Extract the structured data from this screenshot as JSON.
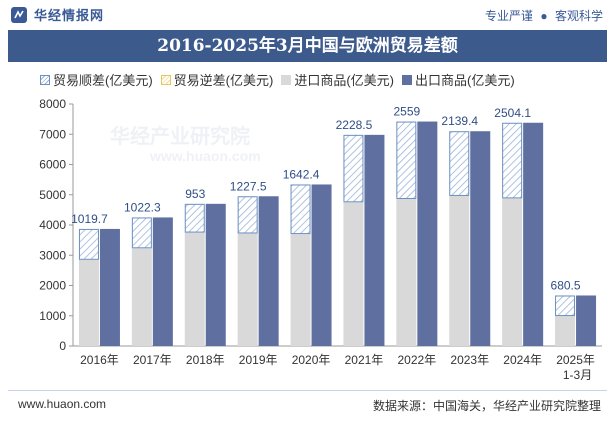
{
  "header": {
    "brand": "华经情报网",
    "tagline_left": "专业严谨",
    "tagline_sep": "●",
    "tagline_right": "客观科学"
  },
  "colors": {
    "title_bg": "#3c5a8c",
    "import": "#d9d9d9",
    "export": "#5f6f9f",
    "surplus_hatch": "#9ab4d8",
    "surplus_border": "#6a8fc0",
    "deficit_hatch": "#f0dc90"
  },
  "footer": {
    "url": "www.huaon.com",
    "source": "数据来源：中国海关，华经产业研究院整理"
  },
  "watermark": {
    "text": "华经产业研究院",
    "url": "www.huaon.com"
  },
  "chart_data": {
    "type": "bar",
    "title": "2016-2025年3月中国与欧洲贸易差额",
    "legend_position": "top",
    "legend": {
      "surplus": "贸易顺差(亿美元)",
      "deficit": "贸易逆差(亿美元)",
      "import": "进口商品(亿美元)",
      "export": "出口商品(亿美元)"
    },
    "categories": [
      "2016年",
      "2017年",
      "2018年",
      "2019年",
      "2020年",
      "2021年",
      "2022年",
      "2023年",
      "2024年",
      "2025年1-3月"
    ],
    "series": [
      {
        "name": "进口商品(亿美元)",
        "values": [
          2850,
          3230,
          3750,
          3720,
          3700,
          4750,
          4860,
          4960,
          4880,
          990
        ]
      },
      {
        "name": "出口商品(亿美元)",
        "values": [
          3870,
          4250,
          4700,
          4950,
          5340,
          6980,
          7420,
          7100,
          7380,
          1670
        ]
      },
      {
        "name": "贸易顺差(亿美元)",
        "values": [
          1019.7,
          1022.3,
          953,
          1227.5,
          1642.4,
          2228.5,
          2559,
          2139.4,
          2504.1,
          680.5
        ]
      }
    ],
    "data_labels": [
      "1019.7",
      "1022.3",
      "953",
      "1227.5",
      "1642.4",
      "2228.5",
      "2559",
      "2139.4",
      "2504.1",
      "680.5"
    ],
    "yticks": [
      0,
      1000,
      2000,
      3000,
      4000,
      5000,
      6000,
      7000,
      8000
    ],
    "ylim": [
      0,
      8000
    ],
    "grid": false
  }
}
